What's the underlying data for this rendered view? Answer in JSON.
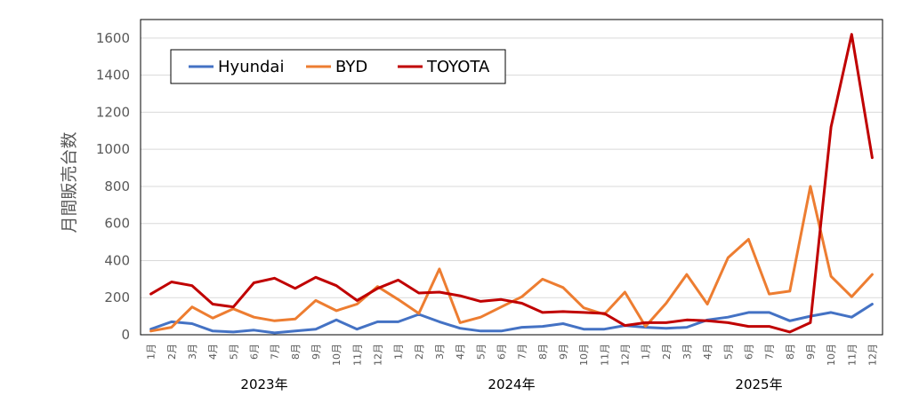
{
  "chart_data": {
    "type": "line",
    "ylabel": "月間販売台数",
    "ylim": [
      0,
      1700
    ],
    "yticks": [
      0,
      200,
      400,
      600,
      800,
      1000,
      1200,
      1400,
      1600
    ],
    "month_labels": [
      "1月",
      "2月",
      "3月",
      "4月",
      "5月",
      "6月",
      "7月",
      "8月",
      "9月",
      "10月",
      "11月",
      "12月",
      "1月",
      "2月",
      "3月",
      "4月",
      "5月",
      "6月",
      "7月",
      "8月",
      "9月",
      "10月",
      "11月",
      "12月",
      "1月",
      "2月",
      "3月",
      "4月",
      "5月",
      "6月",
      "7月",
      "8月",
      "9月",
      "10月",
      "11月",
      "12月"
    ],
    "years": [
      {
        "label": "2023年",
        "start": 0,
        "end": 11
      },
      {
        "label": "2024年",
        "start": 12,
        "end": 23
      },
      {
        "label": "2025年",
        "start": 24,
        "end": 35
      }
    ],
    "legend_position": "top-left",
    "series": [
      {
        "name": "Hyundai",
        "color": "#4472C4",
        "values": [
          30,
          70,
          60,
          20,
          15,
          25,
          10,
          20,
          30,
          80,
          30,
          70,
          70,
          110,
          70,
          35,
          20,
          20,
          40,
          45,
          60,
          30,
          30,
          50,
          40,
          35,
          40,
          80,
          95,
          120,
          120,
          75,
          100,
          120,
          95,
          165
        ]
      },
      {
        "name": "BYD",
        "color": "#ED7D31",
        "values": [
          20,
          40,
          150,
          90,
          140,
          95,
          75,
          85,
          185,
          130,
          165,
          260,
          190,
          115,
          355,
          65,
          95,
          150,
          205,
          300,
          255,
          145,
          110,
          230,
          45,
          170,
          325,
          165,
          415,
          515,
          220,
          235,
          800,
          315,
          205,
          325
        ]
      },
      {
        "name": "TOYOTA",
        "color": "#C00000",
        "values": [
          220,
          285,
          265,
          165,
          150,
          280,
          305,
          250,
          310,
          265,
          185,
          250,
          295,
          225,
          230,
          210,
          180,
          190,
          170,
          120,
          125,
          120,
          115,
          50,
          65,
          65,
          80,
          75,
          65,
          45,
          45,
          15,
          65,
          1120,
          1620,
          955
        ]
      }
    ]
  }
}
